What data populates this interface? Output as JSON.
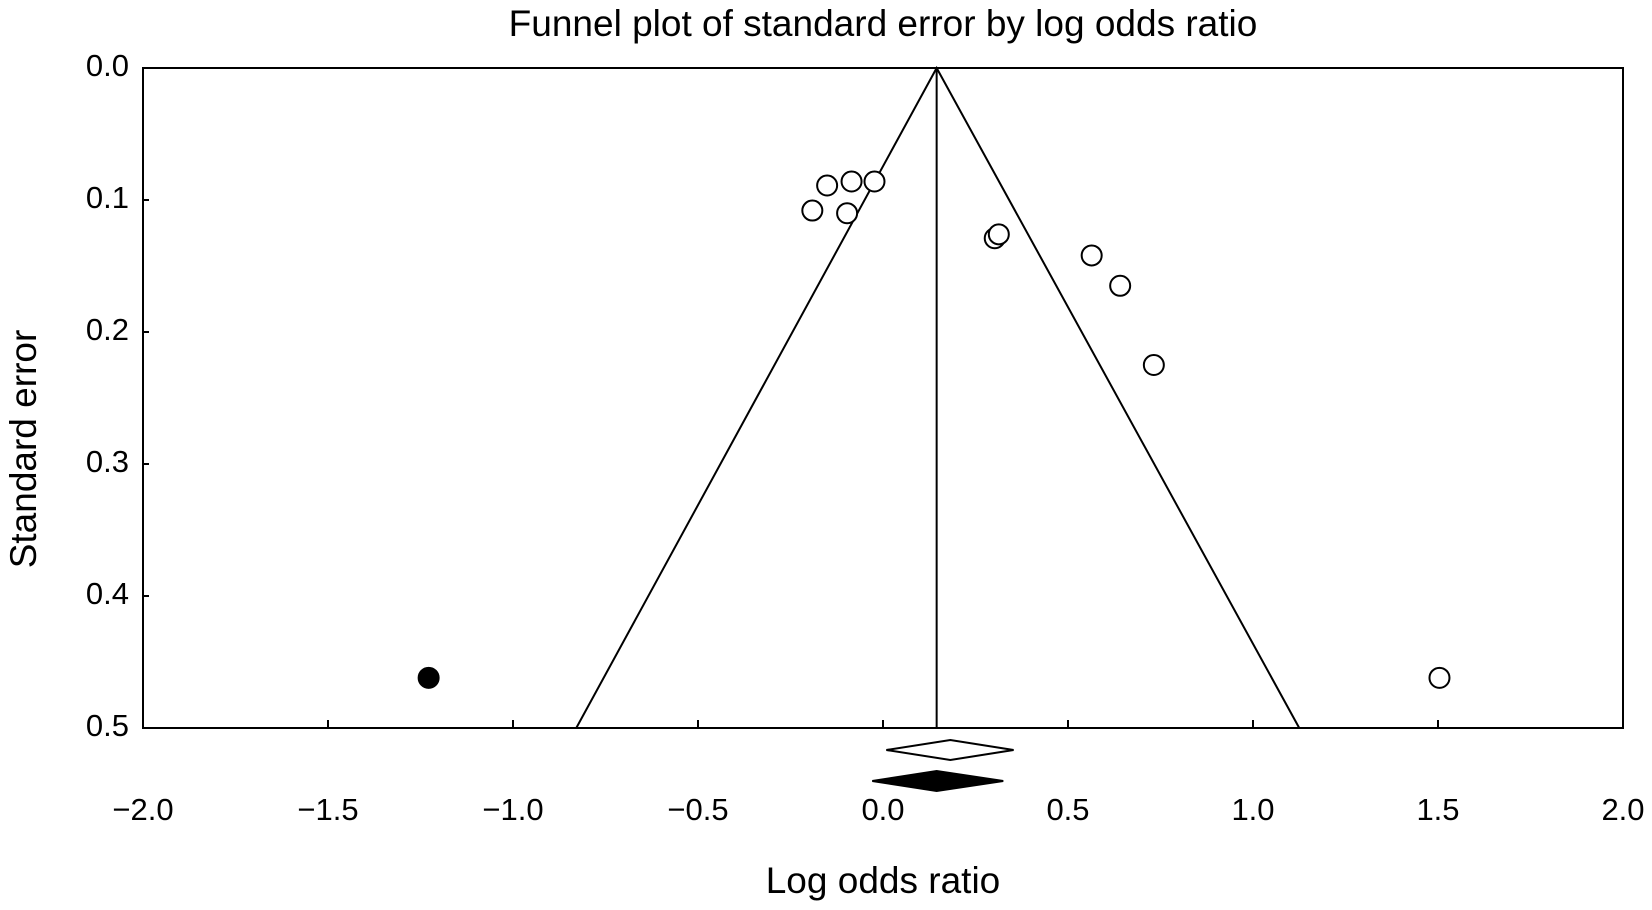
{
  "chart_data": {
    "type": "funnel",
    "title": "Funnel plot of standard error by log odds ratio",
    "x_label": "Log odds ratio",
    "y_label": "Standard error",
    "xlim": [
      -2,
      2
    ],
    "ylim": [
      0,
      0.5
    ],
    "y_inverted": true,
    "xticks": [
      {
        "value": -2,
        "label": "−2.0"
      },
      {
        "value": -1.5,
        "label": "−1.5"
      },
      {
        "value": -1,
        "label": "−1.0"
      },
      {
        "value": -0.5,
        "label": "−0.5"
      },
      {
        "value": 0,
        "label": "0.0"
      },
      0.5,
      {
        "value": 1,
        "label": "1.0"
      },
      1.5,
      {
        "value": 2,
        "label": "2.0"
      }
    ],
    "yticks": [
      {
        "value": 0,
        "label": "0.0"
      },
      0.1,
      0.2,
      0.3,
      0.4,
      0.5
    ],
    "points": [
      {
        "fill": "#ffffff",
        "x": [
          -0.191,
          -0.151,
          -0.085,
          -0.023,
          -0.097,
          0.302,
          0.313,
          0.564,
          0.641,
          0.732,
          1.504
        ],
        "y": [
          0.108,
          0.089,
          0.086,
          0.086,
          0.11,
          0.129,
          0.126,
          0.142,
          0.165,
          0.225,
          0.462
        ]
      },
      {
        "fill": "#000000",
        "x": [
          -1.228
        ],
        "y": [
          0.462
        ]
      }
    ],
    "funnel": {
      "x": [
        -0.829,
        0.145,
        1.125
      ],
      "y": [
        0.5,
        0,
        0.5
      ]
    },
    "center_line": {
      "x": [
        0.145,
        0.145
      ],
      "y": [
        0,
        0.5
      ]
    },
    "summaries": [
      {
        "fill": "#ffffff",
        "x": 0.182,
        "lower": 0.009,
        "upper": 0.353
      },
      {
        "fill": "#000000",
        "x": 0.145,
        "lower": -0.029,
        "upper": 0.325
      }
    ]
  }
}
